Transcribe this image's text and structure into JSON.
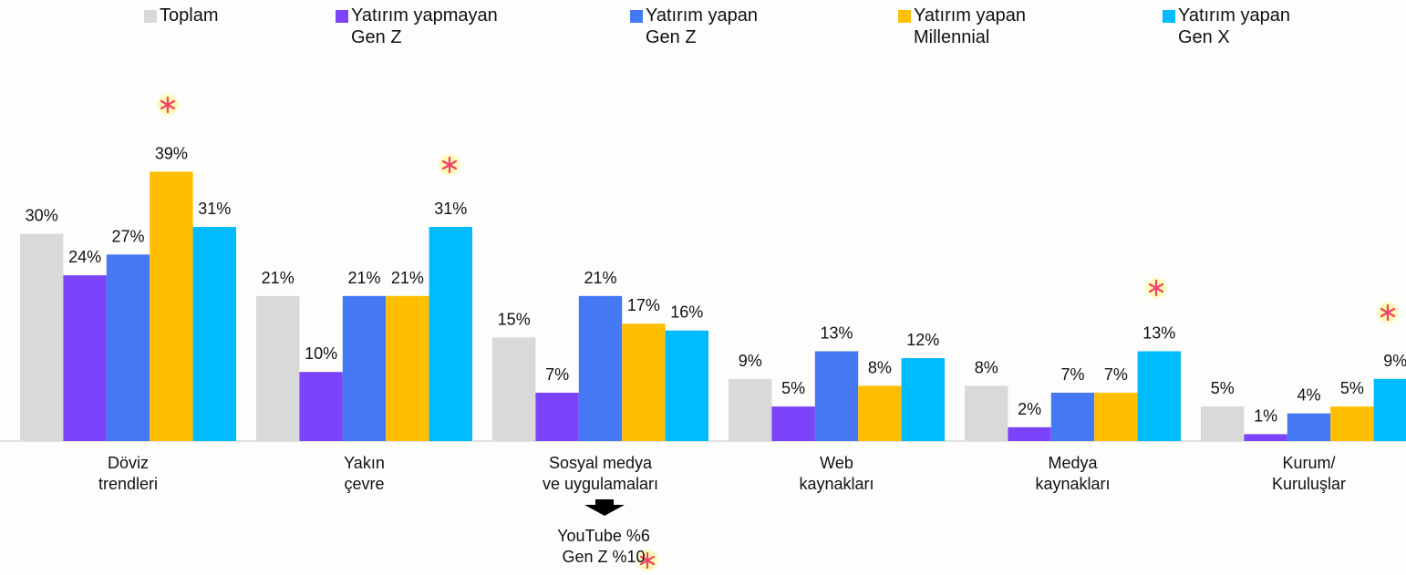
{
  "chart_data": {
    "type": "bar",
    "categories": [
      "Döviz\ntrendleri",
      "Yakın\nçevre",
      "Sosyal medya\nve uygulamaları",
      "Web\nkaynakları",
      "Medya\nkaynakları",
      "Kurum/\nKuruluşlar"
    ],
    "series": [
      {
        "name": "Toplam",
        "color": "#d9d9d9",
        "values": [
          30,
          21,
          15,
          9,
          8,
          5
        ],
        "value_labels": [
          "30%",
          "21%",
          "15%",
          "9%",
          "8%",
          "5%"
        ]
      },
      {
        "name": "Yatırım yapmayan\nGen Z",
        "color": "#7c44fa",
        "values": [
          24,
          10,
          7,
          5,
          2,
          1
        ],
        "value_labels": [
          "24%",
          "10%",
          "7%",
          "5%",
          "2%",
          "1%"
        ]
      },
      {
        "name": "Yatırım yapan\nGen Z",
        "color": "#4478f5",
        "values": [
          27,
          21,
          21,
          13,
          7,
          4
        ],
        "value_labels": [
          "27%",
          "21%",
          "21%",
          "13%",
          "7%",
          "4%"
        ]
      },
      {
        "name": "Yatırım yapan\nMillennial",
        "color": "#ffbf00",
        "values": [
          39,
          21,
          17,
          8,
          7,
          5
        ],
        "value_labels": [
          "39%",
          "21%",
          "17%",
          "8%",
          "7%",
          "5%"
        ]
      },
      {
        "name": "Yatırım yapan\nGen X",
        "color": "#00bcff",
        "values": [
          31,
          31,
          16,
          12,
          13,
          9
        ],
        "value_labels": [
          "31%",
          "31%",
          "16%",
          "12%",
          "13%",
          "9%"
        ]
      }
    ],
    "annotation": "YouTube %6\nGen Z %10"
  }
}
